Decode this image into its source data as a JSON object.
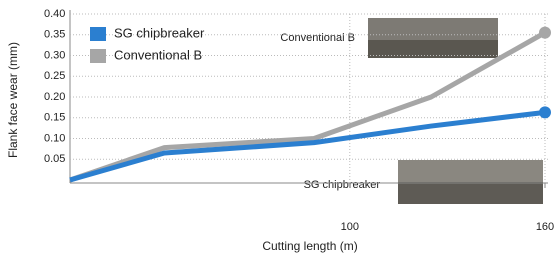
{
  "chart_data": {
    "type": "line",
    "x_label": "Cutting length (m)",
    "y_label": "Flank face wear (mm)",
    "x": [
      14,
      43,
      89,
      125,
      160
    ],
    "series": [
      {
        "name": "SG chipbreaker",
        "color": "#2b7fd0",
        "values": [
          0,
          0.065,
          0.09,
          0.13,
          0.163
        ]
      },
      {
        "name": "Conventional B",
        "color": "#a6a6a6",
        "values": [
          0,
          0.078,
          0.1,
          0.2,
          0.355
        ]
      }
    ],
    "annotations": [
      "Conventional B",
      "SG chipbreaker"
    ],
    "xlim": [
      14,
      160
    ],
    "xticks": [
      100,
      160
    ],
    "ylim": [
      0,
      0.4
    ],
    "yticks": [
      0.05,
      {
        "value": 0.1,
        "label": "0.10"
      },
      0.15,
      {
        "value": 0.2,
        "label": "0.20"
      },
      0.25,
      {
        "value": 0.3,
        "label": "0.30"
      },
      0.35,
      {
        "value": 0.4,
        "label": "0.40"
      }
    ],
    "grid": true,
    "legend": "upper-left"
  }
}
